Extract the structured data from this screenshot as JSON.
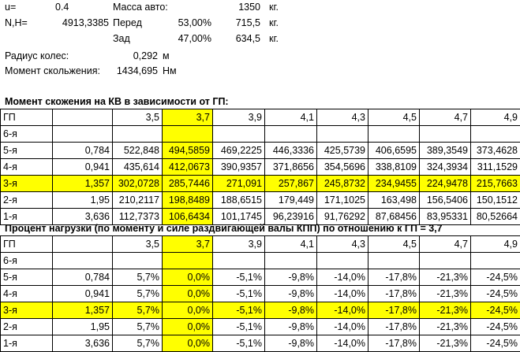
{
  "top": {
    "u_label": "u=",
    "u_value": "0.4",
    "n_label": "N,H=",
    "n_value": "4913,3385",
    "mass_label": "Масса авто:",
    "mass_value": "1350",
    "mass_unit": "кг.",
    "front_label": "Перед",
    "front_pct": "53,00%",
    "front_mass": "715,5",
    "front_unit": "кг.",
    "rear_label": "Зад",
    "rear_pct": "47,00%",
    "rear_mass": "634,5",
    "rear_unit": "кг.",
    "radius_label": "Радиус колес:",
    "radius_value": "0,292",
    "radius_unit": "м",
    "moment_label": "Момент скольжения:",
    "moment_value": "1434,695",
    "moment_unit": "Нм"
  },
  "highlight_color": "#ffff00",
  "table1": {
    "title": "Момент скожения на КВ в зависимости от ГП:",
    "header": [
      "ГП",
      "",
      "3,5",
      "3,7",
      "3,9",
      "4,1",
      "4,3",
      "4,5",
      "4,7",
      "4,9"
    ],
    "rows": [
      [
        "6-я",
        "",
        "",
        "",
        "",
        "",
        "",
        "",
        "",
        ""
      ],
      [
        "5-я",
        "0,784",
        "522,848",
        "494,5859",
        "469,2225",
        "446,3336",
        "425,5739",
        "406,6595",
        "389,3549",
        "373,4628"
      ],
      [
        "4-я",
        "0,941",
        "435,614",
        "412,0673",
        "390,9357",
        "371,8656",
        "354,5696",
        "338,8109",
        "324,3934",
        "311,1529"
      ],
      [
        "3-я",
        "1,357",
        "302,0728",
        "285,7446",
        "271,091",
        "257,867",
        "245,8732",
        "234,9455",
        "224,9478",
        "215,7663"
      ],
      [
        "2-я",
        "1,95",
        "210,2117",
        "198,8489",
        "188,6515",
        "179,449",
        "171,1025",
        "163,498",
        "156,5406",
        "150,1512"
      ],
      [
        "1-я",
        "3,636",
        "112,7373",
        "106,6434",
        "101,1745",
        "96,23916",
        "91,76292",
        "87,68456",
        "83,95331",
        "80,52664"
      ]
    ]
  },
  "table2": {
    "title": "Процент нагрузки (по моменту и силе раздвигающей валы КПП) по отношению к ГП = 3,7",
    "header": [
      "ГП",
      "",
      "3,5",
      "3,7",
      "3,9",
      "4,1",
      "4,3",
      "4,5",
      "4,7",
      "4,9"
    ],
    "rows": [
      [
        "6-я",
        "",
        "",
        "",
        "",
        "",
        "",
        "",
        "",
        ""
      ],
      [
        "5-я",
        "0,784",
        "5,7%",
        "0,0%",
        "-5,1%",
        "-9,8%",
        "-14,0%",
        "-17,8%",
        "-21,3%",
        "-24,5%"
      ],
      [
        "4-я",
        "0,941",
        "5,7%",
        "0,0%",
        "-5,1%",
        "-9,8%",
        "-14,0%",
        "-17,8%",
        "-21,3%",
        "-24,5%"
      ],
      [
        "3-я",
        "1,357",
        "5,7%",
        "0,0%",
        "-5,1%",
        "-9,8%",
        "-14,0%",
        "-17,8%",
        "-21,3%",
        "-24,5%"
      ],
      [
        "2-я",
        "1,95",
        "5,7%",
        "0,0%",
        "-5,1%",
        "-9,8%",
        "-14,0%",
        "-17,8%",
        "-21,3%",
        "-24,5%"
      ],
      [
        "1-я",
        "3,636",
        "5,7%",
        "0,0%",
        "-5,1%",
        "-9,8%",
        "-14,0%",
        "-17,8%",
        "-21,3%",
        "-24,5%"
      ]
    ]
  }
}
